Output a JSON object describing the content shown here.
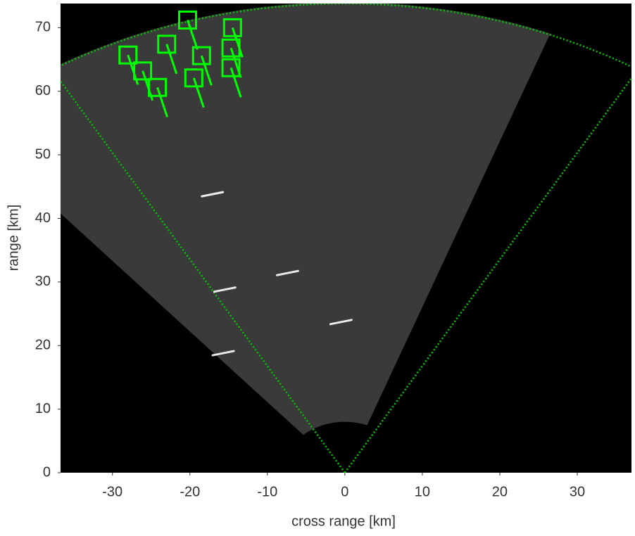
{
  "chart_data": {
    "type": "radar",
    "xlabel": "cross range [km]",
    "ylabel": "range [km]",
    "xlim": [
      -36.7,
      37
    ],
    "ylim": [
      0,
      73.8
    ],
    "xticks": [
      -30,
      -20,
      -10,
      0,
      10,
      20,
      30
    ],
    "yticks": [
      0,
      10,
      20,
      30,
      40,
      50,
      60,
      70
    ],
    "coverage": {
      "min_range": 8,
      "max_range": 74,
      "angles": [
        -42,
        21
      ],
      "color": "#3a3a3a"
    },
    "field_of_view": {
      "range": 73.8,
      "angles": [
        -30.8,
        30.8
      ],
      "color": "#00c800"
    },
    "series": [
      {
        "marker": "square",
        "color": "#00ff00",
        "x": [
          -20.3,
          -14.5,
          -23.0,
          -28.0,
          -18.5,
          -14.7,
          -26.1,
          -14.7,
          -19.5,
          -24.2
        ],
        "values": [
          71.2,
          70.0,
          67.4,
          65.7,
          65.6,
          66.8,
          63.2,
          63.7,
          62.1,
          60.6
        ]
      },
      {
        "marker": "streak",
        "color": "#ffffff",
        "x": [
          -17.1,
          -7.4,
          -15.5,
          -0.5,
          -15.7
        ],
        "values": [
          43.8,
          31.4,
          28.8,
          23.7,
          18.8
        ]
      }
    ]
  }
}
